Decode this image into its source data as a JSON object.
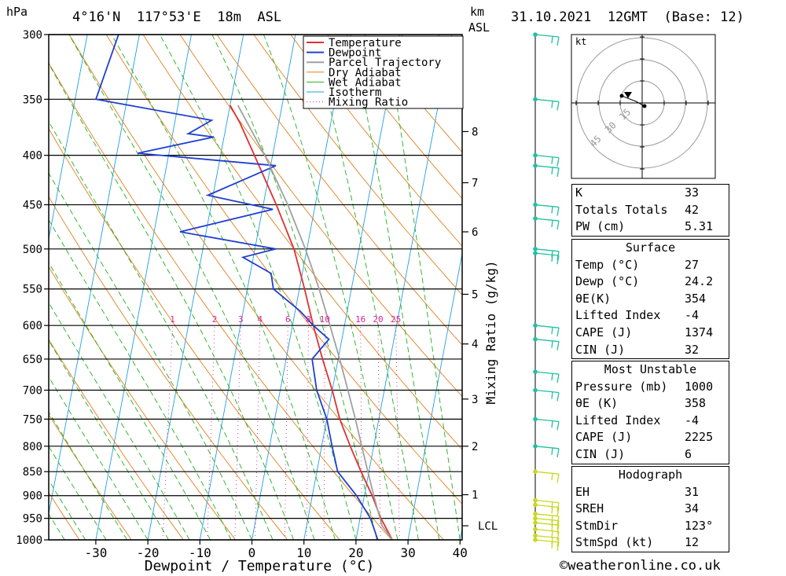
{
  "header": {
    "pressure_unit": "hPa",
    "location": "4°16'N  117°53'E  18m  ASL",
    "height_unit_line1": "km",
    "height_unit_line2": "ASL",
    "datetime": "31.10.2021  12GMT  (Base: 12)"
  },
  "footer": {
    "copyright": "©weatheronline.co.uk"
  },
  "chart_data": {
    "type": "line",
    "title": "",
    "xlabel": "Dewpoint / Temperature (°C)",
    "ylabel": "hPa",
    "secondary_ylabel": "Mixing Ratio (g/kg)",
    "pressure_levels": [
      300,
      350,
      400,
      450,
      500,
      550,
      600,
      650,
      700,
      750,
      800,
      850,
      900,
      950,
      1000
    ],
    "temperature_ticks": [
      -30,
      -20,
      -10,
      0,
      10,
      20,
      30,
      40
    ],
    "height_ticks_km": [
      {
        "label": "8",
        "p": 378
      },
      {
        "label": "7",
        "p": 427
      },
      {
        "label": "6",
        "p": 480
      },
      {
        "label": "5",
        "p": 557
      },
      {
        "label": "4",
        "p": 627
      },
      {
        "label": "3",
        "p": 715
      },
      {
        "label": "2",
        "p": 800
      },
      {
        "label": "1",
        "p": 898
      },
      {
        "label": "LCL",
        "p": 967
      }
    ],
    "mixing_ratio_labels": [
      "1",
      "2",
      "3",
      "4",
      "6",
      "8",
      "10",
      "16",
      "20",
      "25"
    ],
    "series": [
      {
        "name": "Temperature",
        "color": "#e03030",
        "points": [
          [
            1000,
            27
          ],
          [
            950,
            24
          ],
          [
            900,
            21.5
          ],
          [
            850,
            18.5
          ],
          [
            800,
            15.5
          ],
          [
            750,
            12.5
          ],
          [
            700,
            10
          ],
          [
            650,
            7
          ],
          [
            600,
            4
          ],
          [
            550,
            1
          ],
          [
            500,
            -2.5
          ],
          [
            450,
            -7.5
          ],
          [
            400,
            -13.5
          ],
          [
            370,
            -17.5
          ],
          [
            355,
            -20
          ]
        ]
      },
      {
        "name": "Dewpoint",
        "color": "#2040d0",
        "points": [
          [
            1000,
            24.2
          ],
          [
            950,
            22
          ],
          [
            900,
            18.5
          ],
          [
            850,
            14
          ],
          [
            800,
            12
          ],
          [
            750,
            10
          ],
          [
            700,
            7
          ],
          [
            650,
            5
          ],
          [
            620,
            7.5
          ],
          [
            600,
            4
          ],
          [
            580,
            1
          ],
          [
            550,
            -5
          ],
          [
            530,
            -6
          ],
          [
            510,
            -12
          ],
          [
            500,
            -6
          ],
          [
            480,
            -25
          ],
          [
            455,
            -8
          ],
          [
            440,
            -21
          ],
          [
            410,
            -9
          ],
          [
            398,
            -36
          ],
          [
            383,
            -22
          ],
          [
            380,
            -27
          ],
          [
            368,
            -23
          ],
          [
            350,
            -46
          ],
          [
            300,
            -44
          ]
        ]
      },
      {
        "name": "Parcel Trajectory",
        "color": "#a0a0a0",
        "points": [
          [
            1000,
            27
          ],
          [
            967,
            24.5
          ],
          [
            900,
            21.8
          ],
          [
            850,
            19.8
          ],
          [
            800,
            17.7
          ],
          [
            750,
            15.5
          ],
          [
            700,
            13
          ],
          [
            650,
            10.3
          ],
          [
            600,
            7.2
          ],
          [
            550,
            3.8
          ],
          [
            500,
            -0.3
          ],
          [
            450,
            -5.3
          ],
          [
            400,
            -11.5
          ],
          [
            355,
            -18.5
          ]
        ]
      }
    ],
    "legend": [
      "Temperature",
      "Dewpoint",
      "Parcel Trajectory",
      "Dry Adiabat",
      "Wet Adiabat",
      "Isotherm",
      "Mixing Ratio"
    ],
    "legend_position": "top-right",
    "legend_colors": {
      "Temperature": "#e03030",
      "Dewpoint": "#2040d0",
      "Parcel Trajectory": "#a0a0a0",
      "Dry Adiabat": "#e08020",
      "Wet Adiabat": "#20b020",
      "Isotherm": "#20a0e0",
      "Mixing Ratio": "#e020a0"
    },
    "wind_barbs_pressures": [
      300,
      350,
      400,
      410,
      450,
      465,
      500,
      505,
      600,
      620,
      670,
      700,
      750,
      800,
      850,
      910,
      920,
      940,
      950,
      960,
      975,
      990,
      1000
    ],
    "hodograph": {
      "unit": "kt",
      "ring_labels": [
        "15",
        "30",
        "45"
      ]
    }
  },
  "indices": [
    {
      "label": "K",
      "value": "33"
    },
    {
      "label": "Totals Totals",
      "value": "42"
    },
    {
      "label": "PW (cm)",
      "value": "5.31"
    }
  ],
  "surface": {
    "title": "Surface",
    "rows": [
      {
        "label": "Temp (°C)",
        "value": "27"
      },
      {
        "label": "Dewp (°C)",
        "value": "24.2"
      },
      {
        "label": "θE(K)",
        "value": "354"
      },
      {
        "label": "Lifted Index",
        "value": "-4"
      },
      {
        "label": "CAPE (J)",
        "value": "1374"
      },
      {
        "label": "CIN (J)",
        "value": "32"
      }
    ]
  },
  "most_unstable": {
    "title": "Most Unstable",
    "rows": [
      {
        "label": "Pressure (mb)",
        "value": "1000"
      },
      {
        "label": "θE (K)",
        "value": "358"
      },
      {
        "label": "Lifted Index",
        "value": "-4"
      },
      {
        "label": "CAPE (J)",
        "value": "2225"
      },
      {
        "label": "CIN (J)",
        "value": "6"
      }
    ]
  },
  "hodograph_table": {
    "title": "Hodograph",
    "rows": [
      {
        "label": "EH",
        "value": "31"
      },
      {
        "label": "SREH",
        "value": "34"
      },
      {
        "label": "StmDir",
        "value": "123°"
      },
      {
        "label": "StmSpd (kt)",
        "value": "12"
      }
    ]
  }
}
